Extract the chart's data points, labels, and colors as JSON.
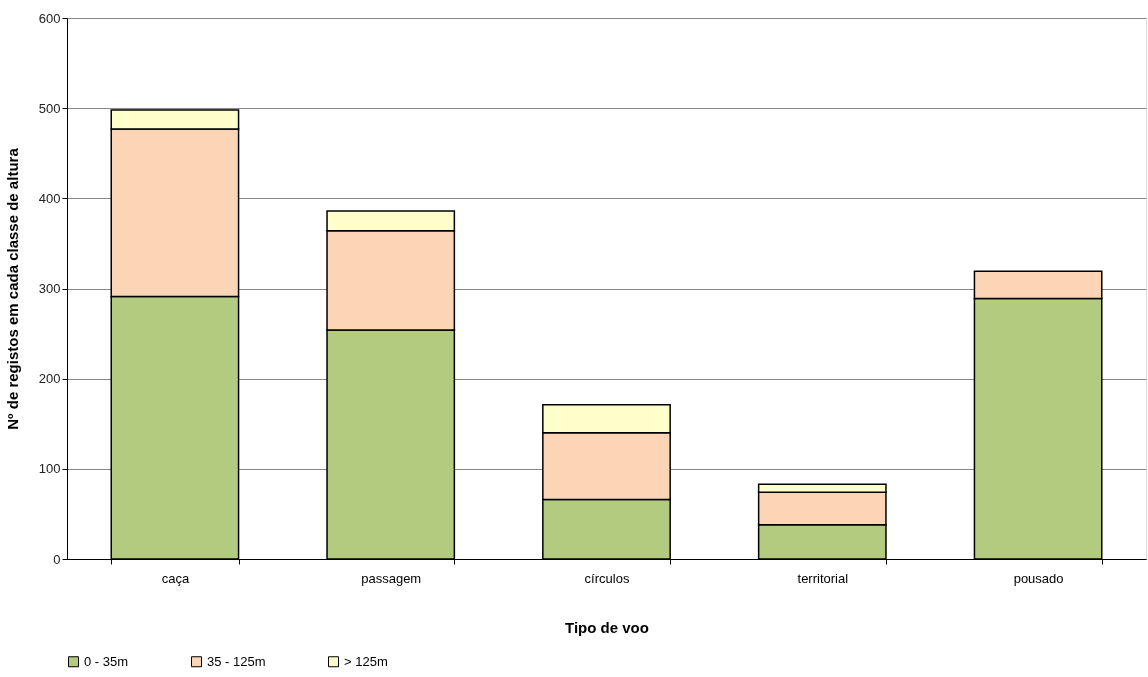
{
  "chart_data": {
    "type": "bar",
    "stacked": true,
    "xlabel": "Tipo de voo",
    "ylabel": "Nº de registos em cada classe de altura",
    "categories": [
      "caça",
      "passagem",
      "círculos",
      "territorial",
      "pousado"
    ],
    "series": [
      {
        "name": "0 - 35m",
        "color": "#b3cb7f",
        "values": [
          291,
          254,
          66,
          38,
          289
        ]
      },
      {
        "name": "35 - 125m",
        "color": "#fbd5b5",
        "values": [
          186,
          110,
          74,
          36,
          30
        ]
      },
      {
        "name": "> 125m",
        "color": "#ffffcc",
        "values": [
          21,
          22,
          31,
          9,
          null
        ]
      }
    ],
    "ylim": [
      0,
      600
    ],
    "yticks": [
      0,
      100,
      200,
      300,
      400,
      500,
      600
    ],
    "grid": "y",
    "legend": "bottom"
  }
}
